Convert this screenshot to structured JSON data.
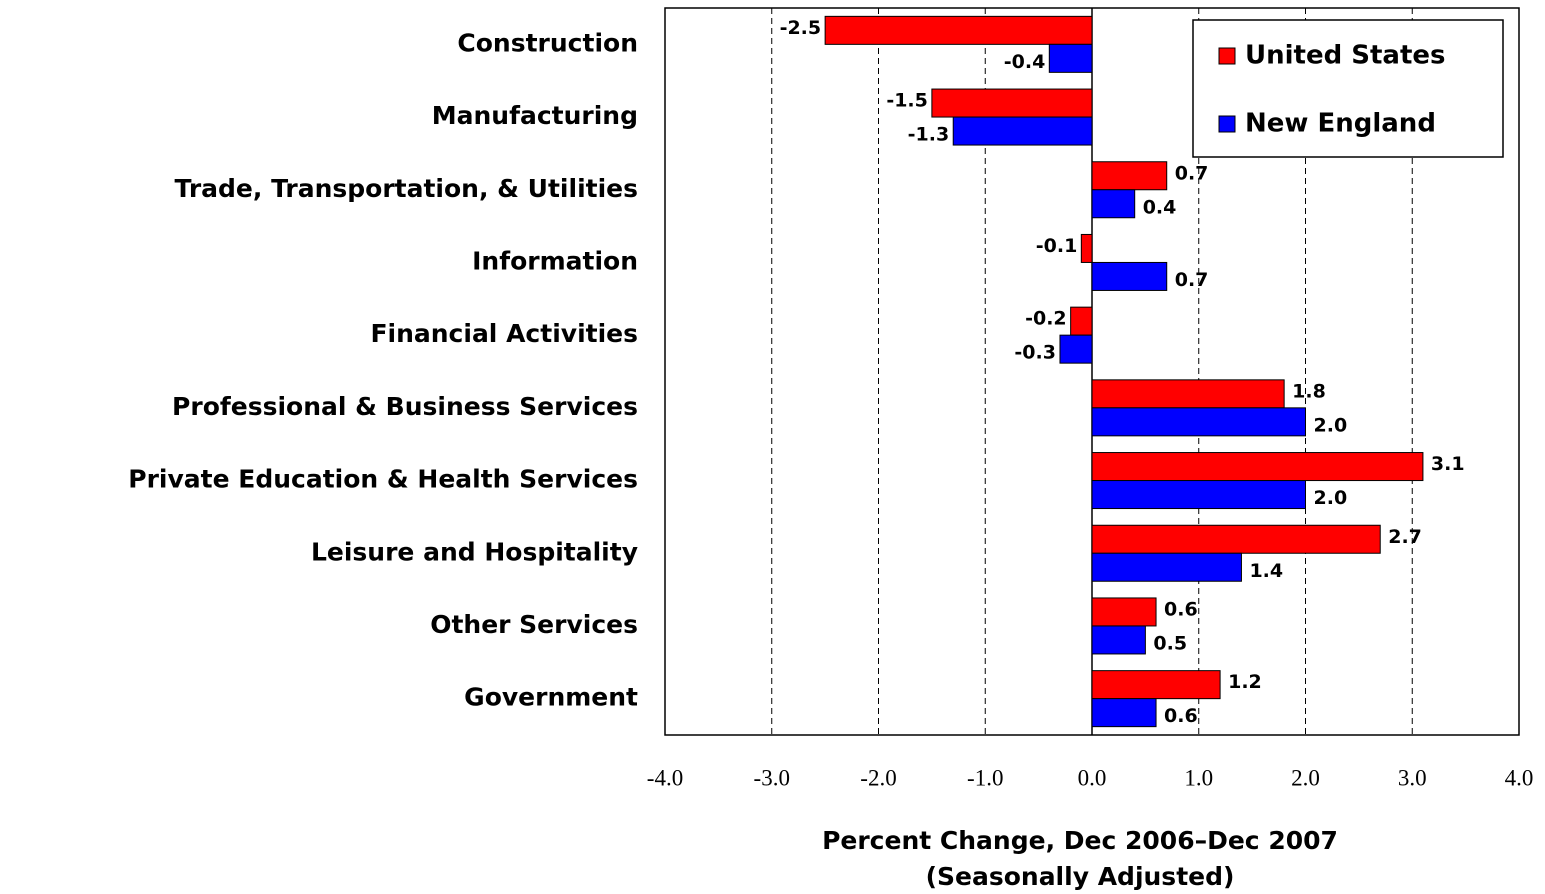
{
  "chart_data": {
    "type": "hbar",
    "xlabel": [
      "Percent Change, Dec 2006–Dec 2007",
      "(Seasonally Adjusted)"
    ],
    "categories": [
      "Construction",
      "Manufacturing",
      "Trade, Transportation, & Utilities",
      "Information",
      "Financial Activities",
      "Professional & Business Services",
      "Private Education & Health Services",
      "Leisure and Hospitality",
      "Other Services",
      "Government"
    ],
    "series": [
      {
        "name": "United States",
        "color": "#ff0000",
        "values": [
          -2.5,
          -1.5,
          0.7,
          -0.1,
          -0.2,
          1.8,
          3.1,
          2.7,
          0.6,
          1.2
        ],
        "value_labels": [
          "-2.5",
          "-1.5",
          "0.7",
          "-0.1",
          "-0.2",
          "1.8",
          "3.1",
          "2.7",
          "0.6",
          "1.2"
        ]
      },
      {
        "name": "New England",
        "color": "#0000ff",
        "values": [
          -0.4,
          -1.3,
          0.4,
          0.7,
          -0.3,
          2.0,
          2.0,
          1.4,
          0.5,
          0.6
        ],
        "value_labels": [
          "-0.4",
          "-1.3",
          "0.4",
          "0.7",
          "-0.3",
          "2.0",
          "2.0",
          "1.4",
          "0.5",
          "0.6"
        ]
      }
    ],
    "xlim": [
      -4,
      4
    ],
    "xticks": [
      {
        "value": -4,
        "label": "-4.0"
      },
      {
        "value": -3,
        "label": "-3.0"
      },
      {
        "value": -2,
        "label": "-2.0"
      },
      {
        "value": -1,
        "label": "-1.0"
      },
      {
        "value": 0,
        "label": "0.0"
      },
      {
        "value": 1,
        "label": "1.0"
      },
      {
        "value": 2,
        "label": "2.0"
      },
      {
        "value": 3,
        "label": "3.0"
      },
      {
        "value": 4,
        "label": "4.0"
      }
    ],
    "grid": true,
    "legend": "upper right"
  }
}
